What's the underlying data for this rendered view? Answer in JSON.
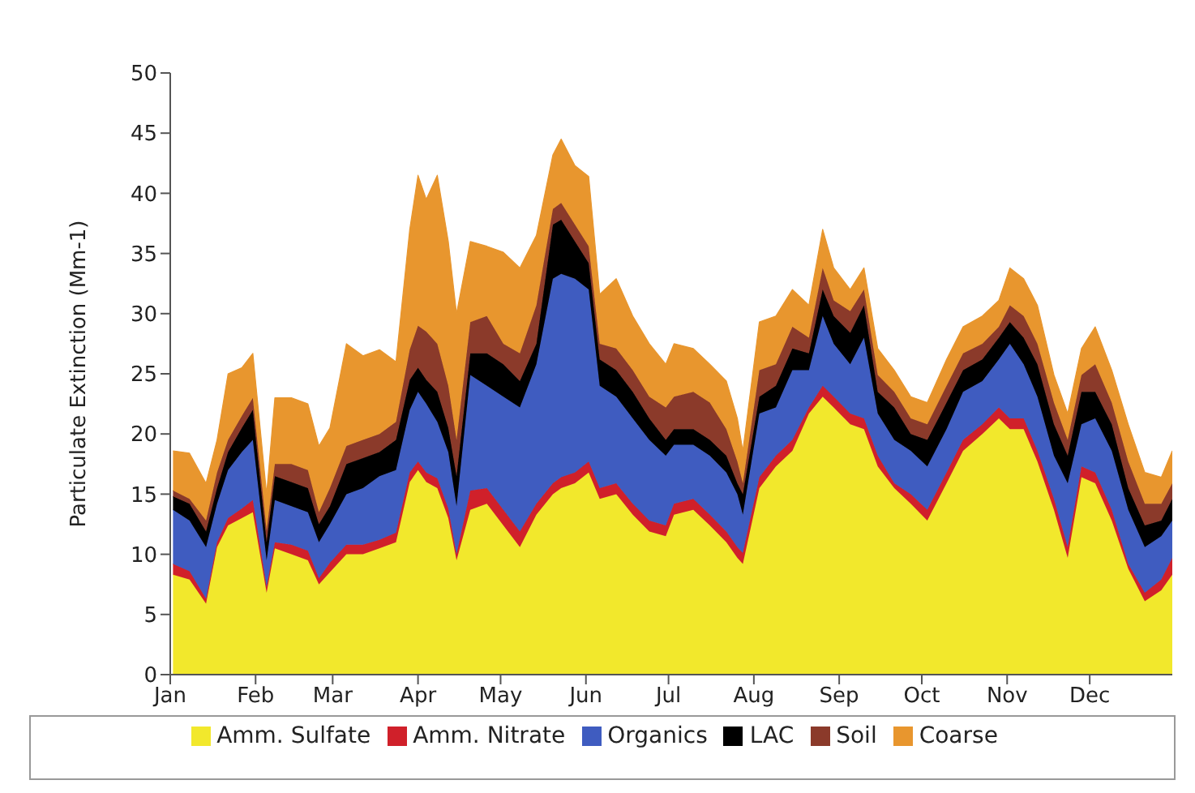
{
  "chart_data": {
    "type": "area",
    "stacked": true,
    "ylabel": "Particulate Extinction (Mm-1)",
    "legend": "bottom",
    "grid": false,
    "xlim": [
      "--01-01",
      "--12-31"
    ],
    "xticks": [
      {
        "value": "--01-01",
        "label": "Jan"
      },
      {
        "value": "--02-01",
        "label": "Feb"
      },
      {
        "value": "--03-01",
        "label": "Mar"
      },
      {
        "value": "--04-01",
        "label": "Apr"
      },
      {
        "value": "--05-01",
        "label": "May"
      },
      {
        "value": "--06-01",
        "label": "Jun"
      },
      {
        "value": "--07-01",
        "label": "Jul"
      },
      {
        "value": "--08-01",
        "label": "Aug"
      },
      {
        "value": "--09-01",
        "label": "Sep"
      },
      {
        "value": "--10-01",
        "label": "Oct"
      },
      {
        "value": "--11-01",
        "label": "Nov"
      },
      {
        "value": "--12-01",
        "label": "Dec"
      }
    ],
    "ylim": [
      0,
      50
    ],
    "yticks": [
      0,
      5,
      10,
      15,
      20,
      25,
      30,
      35,
      40,
      45,
      50
    ],
    "x": [
      "--01-02",
      "--01-08",
      "--01-14",
      "--01-18",
      "--01-22",
      "--01-27",
      "--01-31",
      "--02-05",
      "--02-08",
      "--02-14",
      "--02-20",
      "--02-24",
      "--02-28",
      "--03-06",
      "--03-12",
      "--03-18",
      "--03-24",
      "--03-29",
      "--04-01",
      "--04-04",
      "--04-08",
      "--04-12",
      "--04-15",
      "--04-20",
      "--04-26",
      "--05-02",
      "--05-08",
      "--05-14",
      "--05-20",
      "--05-23",
      "--05-28",
      "--06-02",
      "--06-06",
      "--06-12",
      "--06-18",
      "--06-24",
      "--06-30",
      "--07-03",
      "--07-10",
      "--07-16",
      "--07-22",
      "--07-26",
      "--07-28",
      "--08-03",
      "--08-09",
      "--08-15",
      "--08-21",
      "--08-26",
      "--08-30",
      "--09-05",
      "--09-10",
      "--09-15",
      "--09-21",
      "--09-27",
      "--10-03",
      "--10-10",
      "--10-16",
      "--10-23",
      "--10-29",
      "--11-02",
      "--11-07",
      "--11-12",
      "--11-18",
      "--11-23",
      "--11-28",
      "--12-03",
      "--12-09",
      "--12-15",
      "--12-21",
      "--12-27",
      "--12-31"
    ],
    "series": [
      {
        "name": "Amm. Sulfate",
        "color": "#f2e82c",
        "values": [
          8.3,
          7.9,
          5.9,
          10.6,
          12.4,
          13.0,
          13.5,
          6.8,
          10.5,
          10.0,
          9.5,
          7.5,
          8.5,
          10.0,
          10.0,
          10.5,
          11.0,
          16.0,
          17.0,
          16.0,
          15.5,
          13.0,
          9.5,
          13.7,
          14.2,
          12.4,
          10.6,
          13.3,
          15.0,
          15.5,
          15.9,
          16.8,
          14.6,
          15.0,
          13.3,
          11.9,
          11.5,
          13.3,
          13.7,
          12.4,
          11.0,
          9.7,
          9.2,
          15.5,
          17.3,
          18.6,
          21.7,
          23.1,
          22.2,
          20.8,
          20.4,
          17.3,
          15.5,
          14.2,
          12.8,
          15.9,
          18.6,
          20.0,
          21.3,
          20.4,
          20.4,
          17.7,
          13.7,
          9.7,
          16.4,
          15.9,
          12.8,
          8.8,
          6.1,
          7.0,
          8.3
        ]
      },
      {
        "name": "Amm. Nitrate",
        "color": "#d0202a",
        "values": [
          0.9,
          0.7,
          0.4,
          0.4,
          0.6,
          0.8,
          1.0,
          0.5,
          0.5,
          0.8,
          0.8,
          0.5,
          0.8,
          0.8,
          0.8,
          0.7,
          0.8,
          0.8,
          0.7,
          0.8,
          0.8,
          0.8,
          0.5,
          1.6,
          1.3,
          1.3,
          1.3,
          0.9,
          0.9,
          0.9,
          0.9,
          0.9,
          0.9,
          0.9,
          0.9,
          0.9,
          0.9,
          0.9,
          0.9,
          0.9,
          0.9,
          0.9,
          0.9,
          0.9,
          0.9,
          0.9,
          0.5,
          0.9,
          0.9,
          0.9,
          0.9,
          0.9,
          0.4,
          0.8,
          0.9,
          0.9,
          0.9,
          0.8,
          0.9,
          0.9,
          0.9,
          0.9,
          0.9,
          0.9,
          0.9,
          0.9,
          0.9,
          0.4,
          0.7,
          0.9,
          1.4
        ]
      },
      {
        "name": "Organics",
        "color": "#3f5cc0",
        "values": [
          4.5,
          4.2,
          4.3,
          3.2,
          4.0,
          4.7,
          5.0,
          2.2,
          3.5,
          3.2,
          3.2,
          3.0,
          3.2,
          4.2,
          4.7,
          5.3,
          5.2,
          5.2,
          5.8,
          5.7,
          4.7,
          4.7,
          4.0,
          9.6,
          8.5,
          9.4,
          10.3,
          11.6,
          17.0,
          16.9,
          16.1,
          14.3,
          8.5,
          7.2,
          7.1,
          6.7,
          5.8,
          4.9,
          4.5,
          4.9,
          4.9,
          4.4,
          3.2,
          5.3,
          4.0,
          5.8,
          3.1,
          5.8,
          4.4,
          4.1,
          6.7,
          3.5,
          3.6,
          3.6,
          3.6,
          3.6,
          4.0,
          3.6,
          4.0,
          6.2,
          4.5,
          4.5,
          3.6,
          5.3,
          3.5,
          4.5,
          4.9,
          4.5,
          3.8,
          3.6,
          3.1
        ]
      },
      {
        "name": "LAC",
        "color": "#000000",
        "values": [
          1.1,
          1.4,
          1.3,
          1.3,
          1.5,
          2.0,
          2.5,
          1.5,
          2.0,
          2.0,
          2.0,
          1.5,
          1.5,
          2.5,
          2.5,
          2.0,
          2.5,
          2.5,
          2.0,
          2.0,
          2.5,
          2.0,
          2.5,
          1.8,
          2.7,
          2.7,
          2.2,
          1.7,
          4.5,
          4.5,
          3.1,
          2.2,
          2.2,
          2.2,
          2.2,
          1.8,
          1.3,
          1.3,
          1.3,
          1.3,
          1.4,
          0.9,
          1.7,
          1.4,
          1.8,
          1.8,
          1.4,
          2.2,
          2.3,
          2.6,
          2.7,
          1.8,
          2.7,
          1.4,
          2.2,
          2.2,
          1.8,
          1.8,
          1.8,
          1.8,
          2.2,
          2.7,
          2.6,
          2.3,
          2.7,
          2.2,
          2.2,
          1.8,
          1.8,
          1.3,
          1.8
        ]
      },
      {
        "name": "Soil",
        "color": "#8b3a2a",
        "values": [
          0.5,
          0.4,
          0.9,
          1.3,
          1.0,
          1.0,
          1.0,
          1.0,
          1.0,
          1.5,
          1.5,
          1.0,
          1.5,
          1.5,
          1.5,
          1.5,
          1.5,
          2.5,
          3.5,
          4.0,
          4.0,
          3.5,
          3.0,
          2.6,
          3.1,
          1.7,
          2.3,
          3.2,
          1.3,
          1.4,
          1.4,
          1.4,
          1.3,
          1.8,
          1.8,
          1.8,
          2.7,
          2.7,
          3.1,
          3.1,
          2.2,
          1.8,
          0.9,
          2.2,
          1.8,
          1.8,
          1.3,
          1.8,
          1.3,
          1.8,
          1.3,
          1.4,
          1.3,
          1.3,
          1.3,
          1.4,
          1.4,
          1.3,
          0.9,
          1.4,
          1.8,
          1.7,
          1.8,
          1.3,
          1.4,
          2.3,
          1.8,
          2.2,
          1.8,
          1.4,
          1.3
        ]
      },
      {
        "name": "Coarse",
        "color": "#e8962e",
        "values": [
          3.3,
          3.8,
          3.1,
          2.7,
          5.5,
          4.0,
          3.7,
          3.0,
          5.5,
          5.5,
          5.5,
          5.5,
          5.0,
          8.5,
          7.0,
          7.0,
          5.0,
          10.0,
          12.5,
          11.0,
          14.0,
          12.0,
          10.5,
          6.7,
          5.8,
          7.6,
          7.1,
          5.8,
          4.5,
          5.3,
          4.9,
          5.8,
          4.1,
          5.8,
          4.5,
          4.4,
          3.6,
          4.4,
          3.6,
          3.2,
          4.0,
          3.6,
          2.7,
          4.0,
          4.0,
          3.1,
          2.7,
          3.2,
          2.7,
          1.8,
          1.8,
          2.2,
          1.8,
          1.8,
          1.8,
          2.2,
          2.2,
          2.3,
          2.2,
          3.1,
          3.1,
          3.2,
          2.3,
          2.2,
          2.2,
          3.1,
          2.7,
          3.1,
          2.6,
          2.2,
          2.7
        ]
      }
    ]
  }
}
